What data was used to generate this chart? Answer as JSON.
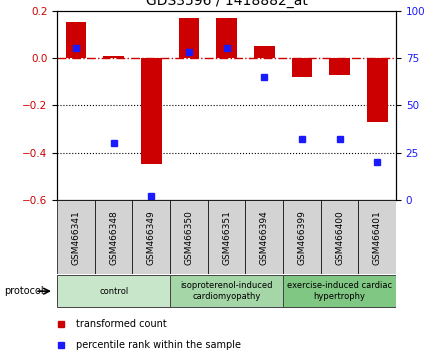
{
  "title": "GDS3596 / 1418882_at",
  "samples": [
    "GSM466341",
    "GSM466348",
    "GSM466349",
    "GSM466350",
    "GSM466351",
    "GSM466394",
    "GSM466399",
    "GSM466400",
    "GSM466401"
  ],
  "red_values": [
    0.15,
    0.01,
    -0.45,
    0.17,
    0.17,
    0.05,
    -0.08,
    -0.07,
    -0.27
  ],
  "blue_values_pct": [
    80,
    30,
    2,
    78,
    80,
    65,
    32,
    32,
    20
  ],
  "ylim_left": [
    -0.6,
    0.2
  ],
  "ylim_right": [
    0,
    100
  ],
  "yticks_left": [
    0.2,
    0.0,
    -0.2,
    -0.4,
    -0.6
  ],
  "yticks_right": [
    100,
    75,
    50,
    25,
    0
  ],
  "dotted_lines": [
    -0.2,
    -0.4
  ],
  "groups": [
    {
      "label": "control",
      "start": 0,
      "end": 3,
      "color": "#c8e6c9"
    },
    {
      "label": "isoproterenol-induced\ncardiomyopathy",
      "start": 3,
      "end": 6,
      "color": "#a5d6a7"
    },
    {
      "label": "exercise-induced cardiac\nhypertrophy",
      "start": 6,
      "end": 9,
      "color": "#81c784"
    }
  ],
  "bar_color": "#cc0000",
  "blue_color": "#1a1aff",
  "left_axis_color": "#cc0000",
  "right_axis_color": "#1a1aff",
  "cell_bg": "#d3d3d3",
  "tick_label_size": 6.5,
  "title_fontsize": 10
}
